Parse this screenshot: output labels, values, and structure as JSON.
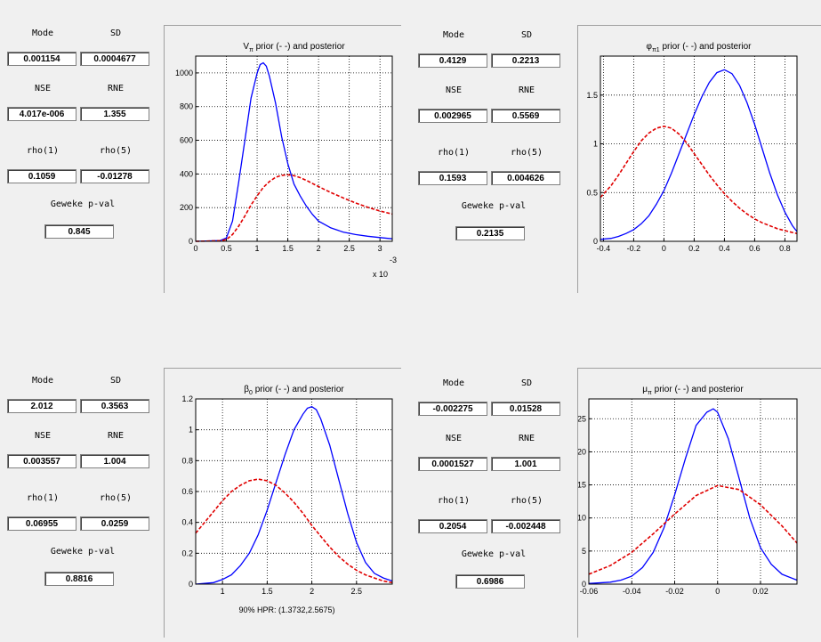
{
  "panels": [
    {
      "stats": {
        "mode_label": "Mode",
        "sd_label": "SD",
        "mode": "0.001154",
        "sd": "0.0004677",
        "nse_label": "NSE",
        "rne_label": "RNE",
        "nse": "4.017e-006",
        "rne": "1.355",
        "rho1_label": "rho(1)",
        "rho5_label": "rho(5)",
        "rho1": "0.1059",
        "rho5": "-0.01278",
        "geweke_label": "Geweke p-val",
        "geweke": "0.845"
      },
      "chart": {
        "title_sym": "V",
        "title_sub": "π",
        "title_rest": " prior (- -) and posterior",
        "xticks": [
          "0",
          "0.5",
          "1",
          "1.5",
          "2",
          "2.5",
          "3"
        ],
        "yticks": [
          "0",
          "200",
          "400",
          "600",
          "800",
          "1000"
        ],
        "exp_base": "x 10",
        "exp_pow": "-3",
        "footer": ""
      }
    },
    {
      "stats": {
        "mode_label": "Mode",
        "sd_label": "SD",
        "mode": "0.4129",
        "sd": "0.2213",
        "nse_label": "NSE",
        "rne_label": "RNE",
        "nse": "0.002965",
        "rne": "0.5569",
        "rho1_label": "rho(1)",
        "rho5_label": "rho(5)",
        "rho1": "0.1593",
        "rho5": "0.004626",
        "geweke_label": "Geweke p-val",
        "geweke": "0.2135"
      },
      "chart": {
        "title_sym": "φ",
        "title_sub": "π1",
        "title_rest": " prior (- -) and posterior",
        "xticks": [
          "-0.4",
          "-0.2",
          "0",
          "0.2",
          "0.4",
          "0.6",
          "0.8"
        ],
        "yticks": [
          "0",
          "0.5",
          "1",
          "1.5"
        ],
        "exp_base": "",
        "exp_pow": "",
        "footer": ""
      }
    },
    {
      "stats": {
        "mode_label": "Mode",
        "sd_label": "SD",
        "mode": "2.012",
        "sd": "0.3563",
        "nse_label": "NSE",
        "rne_label": "RNE",
        "nse": "0.003557",
        "rne": "1.004",
        "rho1_label": "rho(1)",
        "rho5_label": "rho(5)",
        "rho1": "0.06955",
        "rho5": "0.0259",
        "geweke_label": "Geweke p-val",
        "geweke": "0.8816"
      },
      "chart": {
        "title_sym": "β",
        "title_sub": "0",
        "title_rest": " prior (- -) and posterior",
        "xticks": [
          "1",
          "1.5",
          "2",
          "2.5"
        ],
        "yticks": [
          "0",
          "0.2",
          "0.4",
          "0.6",
          "0.8",
          "1",
          "1.2"
        ],
        "exp_base": "",
        "exp_pow": "",
        "footer": "90% HPR: (1.3732,2.5675)"
      }
    },
    {
      "stats": {
        "mode_label": "Mode",
        "sd_label": "SD",
        "mode": "-0.002275",
        "sd": "0.01528",
        "nse_label": "NSE",
        "rne_label": "RNE",
        "nse": "0.0001527",
        "rne": "1.001",
        "rho1_label": "rho(1)",
        "rho5_label": "rho(5)",
        "rho1": "0.2054",
        "rho5": "-0.002448",
        "geweke_label": "Geweke p-val",
        "geweke": "0.6986"
      },
      "chart": {
        "title_sym": "μ",
        "title_sub": "π",
        "title_rest": " prior (- -) and posterior",
        "xticks": [
          "-0.06",
          "-0.04",
          "-0.02",
          "0",
          "0.02"
        ],
        "yticks": [
          "0",
          "5",
          "10",
          "15",
          "20",
          "25"
        ],
        "exp_base": "",
        "exp_pow": "",
        "footer": ""
      }
    }
  ],
  "colors": {
    "posterior": "#0000ff",
    "prior": "#e00000"
  },
  "chart_data": [
    {
      "type": "line",
      "title": "Vπ prior (- -) and posterior",
      "xlim": [
        0,
        0.0032
      ],
      "ylim": [
        0,
        1100
      ],
      "x_scale_note": "x 10^-3",
      "grid": true,
      "series": [
        {
          "x": [
            0,
            0.0004,
            0.0005,
            0.0006,
            0.0007,
            0.0008,
            0.0009,
            0.001,
            0.00105,
            0.0011,
            0.00115,
            0.0012,
            0.0013,
            0.0014,
            0.0015,
            0.0016,
            0.0017,
            0.0018,
            0.0019,
            0.002,
            0.0022,
            0.0024,
            0.0026,
            0.0028,
            0.003,
            0.0032
          ],
          "y": [
            0,
            5,
            20,
            120,
            350,
            600,
            850,
            1000,
            1050,
            1060,
            1040,
            980,
            820,
            620,
            460,
            340,
            270,
            210,
            160,
            120,
            80,
            55,
            40,
            30,
            22,
            15
          ]
        },
        {
          "x": [
            0,
            0.0004,
            0.0005,
            0.0006,
            0.0007,
            0.0008,
            0.0009,
            0.001,
            0.0011,
            0.0012,
            0.0013,
            0.0014,
            0.0015,
            0.0016,
            0.0017,
            0.0018,
            0.002,
            0.0022,
            0.0024,
            0.0026,
            0.0028,
            0.003,
            0.0032
          ],
          "y": [
            0,
            3,
            10,
            40,
            90,
            150,
            215,
            270,
            320,
            355,
            380,
            392,
            395,
            390,
            378,
            362,
            325,
            290,
            258,
            228,
            202,
            180,
            162
          ]
        }
      ]
    },
    {
      "type": "line",
      "title": "φπ1 prior (- -) and posterior",
      "xlim": [
        -0.42,
        0.88
      ],
      "ylim": [
        0,
        1.9
      ],
      "grid": true,
      "series": [
        {
          "x": [
            -0.42,
            -0.35,
            -0.3,
            -0.25,
            -0.2,
            -0.15,
            -0.1,
            -0.05,
            0,
            0.05,
            0.1,
            0.15,
            0.2,
            0.25,
            0.3,
            0.35,
            0.4,
            0.45,
            0.5,
            0.55,
            0.6,
            0.65,
            0.7,
            0.75,
            0.8,
            0.85,
            0.88
          ],
          "y": [
            0.02,
            0.03,
            0.05,
            0.08,
            0.12,
            0.18,
            0.26,
            0.38,
            0.52,
            0.7,
            0.9,
            1.1,
            1.3,
            1.48,
            1.63,
            1.73,
            1.76,
            1.72,
            1.6,
            1.42,
            1.2,
            0.95,
            0.7,
            0.48,
            0.3,
            0.16,
            0.1
          ]
        },
        {
          "x": [
            -0.42,
            -0.35,
            -0.3,
            -0.25,
            -0.2,
            -0.15,
            -0.1,
            -0.05,
            0,
            0.05,
            0.1,
            0.15,
            0.2,
            0.25,
            0.3,
            0.35,
            0.4,
            0.45,
            0.5,
            0.55,
            0.6,
            0.65,
            0.7,
            0.75,
            0.8,
            0.85,
            0.88
          ],
          "y": [
            0.45,
            0.57,
            0.68,
            0.8,
            0.92,
            1.03,
            1.11,
            1.16,
            1.18,
            1.16,
            1.1,
            1.01,
            0.9,
            0.79,
            0.68,
            0.58,
            0.49,
            0.41,
            0.34,
            0.28,
            0.23,
            0.19,
            0.16,
            0.13,
            0.11,
            0.09,
            0.08
          ]
        }
      ]
    },
    {
      "type": "line",
      "title": "β0 prior (- -) and posterior",
      "subtitle": "90% HPR: (1.3732,2.5675)",
      "xlim": [
        0.7,
        2.9
      ],
      "ylim": [
        0,
        1.2
      ],
      "grid": true,
      "series": [
        {
          "x": [
            0.7,
            0.9,
            1.0,
            1.1,
            1.2,
            1.3,
            1.4,
            1.5,
            1.6,
            1.7,
            1.8,
            1.9,
            1.95,
            2.0,
            2.05,
            2.1,
            2.2,
            2.3,
            2.4,
            2.5,
            2.6,
            2.7,
            2.8,
            2.9
          ],
          "y": [
            0.0,
            0.01,
            0.03,
            0.06,
            0.12,
            0.2,
            0.32,
            0.48,
            0.66,
            0.84,
            1.0,
            1.1,
            1.14,
            1.15,
            1.13,
            1.07,
            0.9,
            0.68,
            0.46,
            0.27,
            0.14,
            0.07,
            0.04,
            0.02
          ]
        },
        {
          "x": [
            0.7,
            0.8,
            0.9,
            1.0,
            1.1,
            1.2,
            1.3,
            1.4,
            1.5,
            1.6,
            1.7,
            1.8,
            1.9,
            2.0,
            2.1,
            2.2,
            2.3,
            2.4,
            2.5,
            2.6,
            2.7,
            2.8,
            2.9
          ],
          "y": [
            0.33,
            0.4,
            0.47,
            0.54,
            0.6,
            0.64,
            0.67,
            0.68,
            0.67,
            0.64,
            0.59,
            0.53,
            0.46,
            0.38,
            0.31,
            0.24,
            0.18,
            0.13,
            0.09,
            0.06,
            0.04,
            0.02,
            0.01
          ]
        }
      ]
    },
    {
      "type": "line",
      "title": "μπ prior (- -) and posterior",
      "xlim": [
        -0.06,
        0.037
      ],
      "ylim": [
        0,
        28
      ],
      "grid": true,
      "series": [
        {
          "x": [
            -0.06,
            -0.05,
            -0.045,
            -0.04,
            -0.035,
            -0.03,
            -0.025,
            -0.02,
            -0.015,
            -0.01,
            -0.005,
            -0.002,
            0,
            0.005,
            0.01,
            0.015,
            0.02,
            0.025,
            0.03,
            0.037
          ],
          "y": [
            0.1,
            0.3,
            0.6,
            1.2,
            2.5,
            4.8,
            8.5,
            13.5,
            19,
            24,
            26,
            26.5,
            26,
            22,
            16,
            10,
            5.5,
            3,
            1.5,
            0.6
          ]
        },
        {
          "x": [
            -0.06,
            -0.05,
            -0.04,
            -0.03,
            -0.02,
            -0.01,
            0,
            0.01,
            0.02,
            0.03,
            0.037
          ],
          "y": [
            1.5,
            2.8,
            4.8,
            7.6,
            10.6,
            13.4,
            14.9,
            14.3,
            12.0,
            8.8,
            6.2
          ]
        }
      ]
    }
  ]
}
